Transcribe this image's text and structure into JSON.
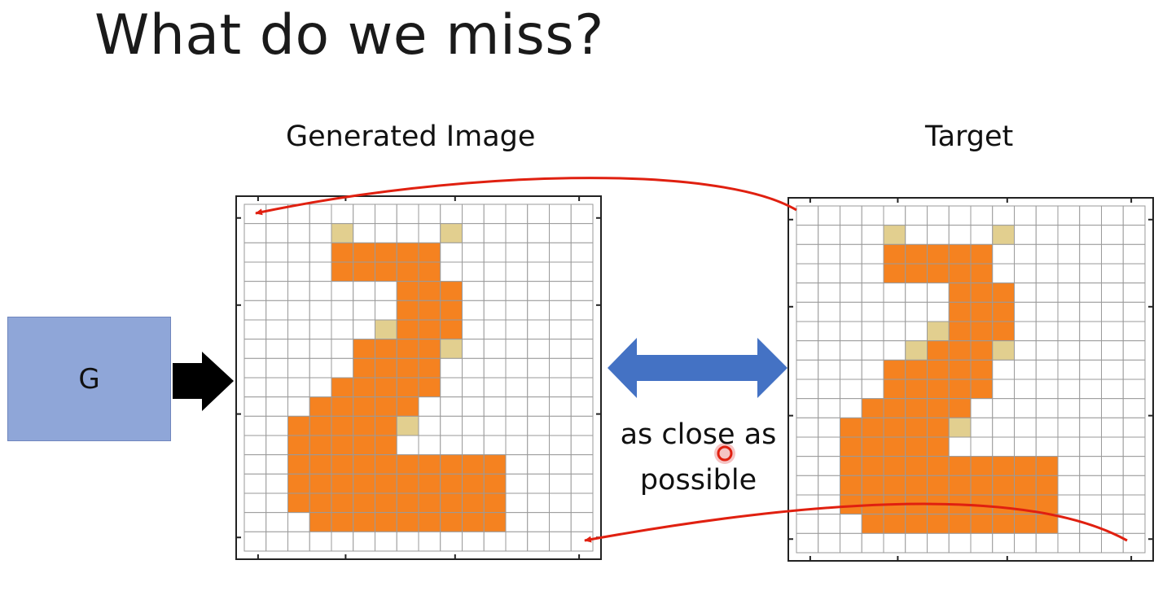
{
  "slide": {
    "title": "What do we miss?",
    "generator_label": "G",
    "generated_label": "Generated Image",
    "target_label": "Target",
    "caption_line1": "as close as",
    "caption_line2": "possible"
  },
  "colors": {
    "orange": "#f58220",
    "tan": "#e2cf8f",
    "grid_line": "#9a9a9a",
    "box_fill": "#8fa6d8",
    "blue_arrow": "#4472c4",
    "red_arrow": "#e02010",
    "black_arrow": "#000000"
  },
  "icons": {
    "input_arrow": "right-arrow-icon",
    "compare_arrow": "double-arrow-icon",
    "cursor": "cursor-icon"
  },
  "generated_grid": [
    "................",
    "....2....2......",
    "....11111.......",
    "....11111.......",
    ".......111......",
    ".......111......",
    "......2111......",
    ".....11112......",
    ".....1111.......",
    "....11111.......",
    "...11111........",
    "..111112........",
    "..11111.........",
    "..1111111111....",
    "..1111111111....",
    "..1111111111....",
    "...111111111....",
    "................"
  ],
  "target_grid": [
    "................",
    "....2....2......",
    "....11111.......",
    "....11111.......",
    ".......111......",
    ".......111......",
    "......2111......",
    ".....21112......",
    "....11111.......",
    "....11111.......",
    "...11111........",
    "..111112........",
    "..11111.........",
    "..1111111111....",
    "..1111111111....",
    "..1111111111....",
    "...111111111....",
    "................"
  ]
}
